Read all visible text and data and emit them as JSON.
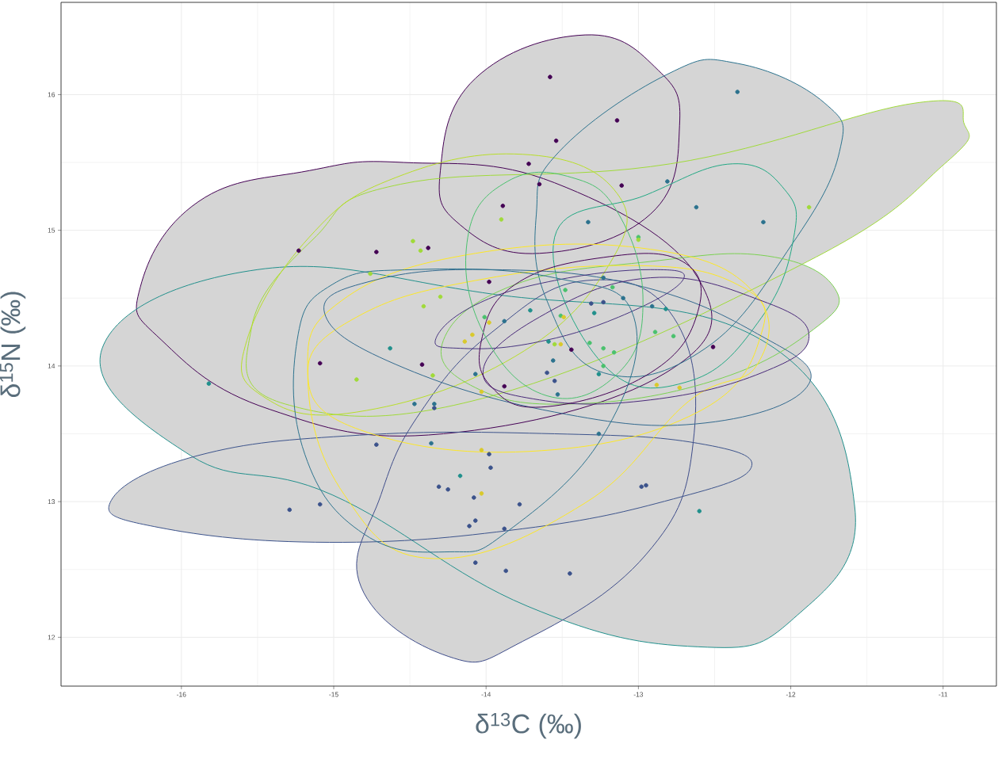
{
  "chart_data": {
    "type": "scatter",
    "xlabel": "δ$^{13}$C (‰)",
    "ylabel": "δ$^{15}$N (‰)",
    "xlim": [
      -16.79,
      -10.65
    ],
    "ylim": [
      11.64,
      16.68
    ],
    "xticks": [
      -16,
      -15,
      -14,
      -13,
      -12,
      -11
    ],
    "yticks": [
      12,
      13,
      14,
      15,
      16
    ],
    "grid": true,
    "series": [
      {
        "type": "area",
        "marker": "none",
        "color": "#440154",
        "x": [
          -14.3,
          -14.07,
          -13.35,
          -12.87,
          -12.73,
          -12.92,
          -13.65,
          -14.17
        ],
        "values": [
          15.44,
          16.12,
          16.44,
          16.18,
          15.77,
          15.12,
          14.83,
          15.04
        ]
      },
      {
        "type": "area",
        "marker": "none",
        "color": "#440154",
        "x": [
          -16.27,
          -15.89,
          -15.16,
          -14.54,
          -13.55,
          -12.61,
          -12.82,
          -14.28,
          -15.42,
          -16.13
        ],
        "values": [
          14.58,
          15.21,
          15.44,
          15.5,
          15.35,
          14.65,
          13.95,
          13.5,
          13.68,
          14.19
        ]
      },
      {
        "type": "area",
        "marker": "none",
        "color": "#21908c",
        "x": [
          -16.52,
          -15.5,
          -13.96,
          -12.19,
          -11.58,
          -11.98,
          -12.61,
          -13.73,
          -15.01,
          -15.94
        ],
        "values": [
          14.13,
          14.71,
          14.53,
          14.19,
          12.96,
          12.14,
          11.93,
          12.23,
          13.05,
          13.34
        ]
      },
      {
        "type": "area",
        "marker": "none",
        "color": "#3b528b",
        "x": [
          -16.46,
          -15.89,
          -14.83,
          -13.55,
          -12.61,
          -12.26,
          -12.77,
          -13.76,
          -15.03,
          -16.15
        ],
        "values": [
          13.01,
          13.34,
          13.49,
          13.5,
          13.43,
          13.25,
          13.02,
          12.8,
          12.7,
          12.81
        ]
      },
      {
        "type": "area",
        "marker": "none",
        "color": "#3e4c8a",
        "x": [
          -14.82,
          -14.69,
          -14.43,
          -13.96,
          -13.34,
          -12.77,
          -12.64,
          -12.95,
          -13.76,
          -14.25
        ],
        "values": [
          12.37,
          13.05,
          13.66,
          14.25,
          14.63,
          14.36,
          13.44,
          12.61,
          11.97,
          11.86
        ]
      },
      {
        "type": "area",
        "marker": "none",
        "color": "#a0da39",
        "x": [
          -10.86,
          -11.17,
          -12.79,
          -14.56,
          -15.13,
          -15.54,
          -15.32,
          -13.96,
          -11.89,
          -10.99
        ],
        "values": [
          15.78,
          15.94,
          15.49,
          15.34,
          14.94,
          14.28,
          13.72,
          13.78,
          14.77,
          15.49
        ]
      },
      {
        "type": "area",
        "marker": "none",
        "color": "#b8de29",
        "x": [
          -15.57,
          -15.16,
          -14.59,
          -13.76,
          -13.16,
          -13.18,
          -13.81,
          -14.85,
          -15.47
        ],
        "values": [
          14.19,
          14.95,
          15.39,
          15.56,
          15.3,
          14.77,
          14.07,
          13.66,
          13.78
        ]
      },
      {
        "type": "area",
        "marker": "none",
        "color": "#2c728e",
        "x": [
          -13.67,
          -13.52,
          -12.81,
          -12.35,
          -11.78,
          -11.68,
          -11.99,
          -12.56,
          -13.23,
          -13.6
        ],
        "values": [
          15.12,
          15.58,
          16.15,
          16.23,
          15.94,
          15.58,
          14.9,
          14.13,
          13.95,
          14.48
        ]
      },
      {
        "type": "area",
        "marker": "none",
        "color": "#22a884",
        "x": [
          -13.55,
          -12.95,
          -12.38,
          -12.04,
          -11.98,
          -12.19,
          -12.66,
          -13.23
        ],
        "values": [
          14.95,
          15.26,
          15.49,
          15.3,
          14.95,
          14.36,
          13.89,
          14.01
        ]
      },
      {
        "type": "area",
        "marker": "none",
        "color": "#7ad151",
        "x": [
          -14.28,
          -13.81,
          -12.92,
          -12.15,
          -11.71,
          -11.85,
          -12.51,
          -13.44,
          -14.07
        ],
        "values": [
          14.19,
          14.6,
          14.77,
          14.81,
          14.57,
          14.27,
          13.89,
          13.72,
          13.84
        ]
      },
      {
        "type": "area",
        "marker": "none",
        "color": "#fde725",
        "x": [
          -15.17,
          -14.95,
          -14.07,
          -12.92,
          -12.24,
          -12.22,
          -12.67,
          -13.35,
          -14.34,
          -14.93
        ],
        "values": [
          13.92,
          14.48,
          14.83,
          14.86,
          14.54,
          14.01,
          13.74,
          12.99,
          12.58,
          13.05
        ]
      },
      {
        "type": "area",
        "marker": "none",
        "color": "#fde725",
        "x": [
          -15.17,
          -14.85,
          -14.07,
          -13.03,
          -12.35,
          -12.19,
          -12.61,
          -13.72,
          -14.83
        ],
        "values": [
          13.95,
          14.36,
          14.63,
          14.74,
          14.6,
          14.25,
          13.66,
          13.37,
          13.53
        ]
      },
      {
        "type": "area",
        "marker": "none",
        "color": "#31688e",
        "x": [
          -15.06,
          -14.74,
          -13.96,
          -13.03,
          -12.24,
          -11.88,
          -12.56,
          -13.55,
          -14.59
        ],
        "values": [
          14.39,
          14.63,
          14.71,
          14.6,
          14.25,
          13.87,
          13.58,
          13.66,
          14.01
        ]
      },
      {
        "type": "area",
        "marker": "none",
        "color": "#482878",
        "x": [
          -14.02,
          -13.65,
          -12.92,
          -12.19,
          -11.88,
          -12.19,
          -12.92,
          -13.65
        ],
        "values": [
          13.95,
          14.36,
          14.65,
          14.48,
          14.22,
          13.95,
          13.75,
          13.75
        ]
      },
      {
        "type": "area",
        "marker": "none",
        "color": "#46337e",
        "x": [
          -14.33,
          -14.07,
          -13.55,
          -12.92,
          -12.71,
          -13.13,
          -13.69,
          -14.17
        ],
        "values": [
          14.2,
          14.45,
          14.63,
          14.71,
          14.63,
          14.36,
          14.17,
          14.13
        ]
      },
      {
        "type": "area",
        "marker": "none",
        "color": "#440154",
        "x": [
          -14.03,
          -13.81,
          -13.23,
          -12.71,
          -12.61,
          -12.92,
          -13.6,
          -13.96
        ],
        "values": [
          14.19,
          14.6,
          14.8,
          14.77,
          14.4,
          13.95,
          13.7,
          13.84
        ]
      },
      {
        "type": "area",
        "marker": "none",
        "color": "#4ac16d",
        "x": [
          -14.12,
          -13.86,
          -13.44,
          -13.13,
          -12.97,
          -13.13,
          -13.6,
          -14.02
        ],
        "values": [
          14.95,
          15.36,
          15.39,
          15.12,
          14.48,
          13.95,
          13.78,
          14.25
        ]
      },
      {
        "type": "area",
        "marker": "none",
        "color": "#2c728e",
        "x": [
          -15.24,
          -15.01,
          -14.48,
          -13.55,
          -13.03,
          -13.23,
          -13.86,
          -14.24,
          -14.8,
          -15.19
        ],
        "values": [
          14.19,
          14.6,
          14.71,
          14.65,
          14.36,
          13.49,
          12.78,
          12.63,
          12.76,
          13.35
        ]
      },
      {
        "marker": "circle",
        "color": "#440154",
        "x": [
          -13.58,
          -13.54,
          -13.14,
          -13.72,
          -13.65,
          -13.89,
          -13.11,
          -14.38,
          -15.23,
          -14.72,
          -15.09,
          -14.42,
          -13.98,
          -13.44,
          -12.51,
          -13.88
        ],
        "values": [
          16.13,
          15.66,
          15.81,
          15.49,
          15.34,
          15.18,
          15.33,
          14.87,
          14.85,
          14.84,
          14.02,
          14.01,
          14.62,
          14.12,
          14.14,
          13.85
        ]
      },
      {
        "marker": "circle",
        "color": "#3b528b",
        "x": [
          -15.29,
          -15.09,
          -14.08,
          -14.07,
          -14.11,
          -13.88,
          -14.07,
          -13.87,
          -13.45,
          -12.98,
          -12.95,
          -14.31,
          -14.25,
          -13.78,
          -13.97,
          -14.72,
          -13.98,
          -14.34,
          -13.31,
          -13.23,
          -13.6,
          -13.55
        ],
        "values": [
          12.94,
          12.98,
          13.03,
          12.86,
          12.82,
          12.8,
          12.55,
          12.49,
          12.47,
          13.11,
          13.12,
          13.11,
          13.09,
          12.98,
          13.25,
          13.42,
          13.35,
          13.69,
          14.46,
          14.47,
          13.95,
          13.89
        ]
      },
      {
        "marker": "circle",
        "color": "#2c728e",
        "x": [
          -12.35,
          -12.81,
          -12.62,
          -12.18,
          -13.33,
          -14.47,
          -14.34,
          -14.36,
          -13.26,
          -13.56,
          -13.88,
          -13.23,
          -13.1,
          -13.53,
          -12.91,
          -14.07
        ],
        "values": [
          16.02,
          15.36,
          15.17,
          15.06,
          15.06,
          13.72,
          13.72,
          13.43,
          13.5,
          14.04,
          14.33,
          14.65,
          14.5,
          13.79,
          14.44,
          13.94
        ]
      },
      {
        "marker": "circle",
        "color": "#21908c",
        "x": [
          -15.82,
          -14.63,
          -14.17,
          -12.6,
          -13.29,
          -12.82,
          -13.59,
          -13.26,
          -13.71
        ],
        "values": [
          13.87,
          14.13,
          13.19,
          12.93,
          14.39,
          14.42,
          14.18,
          13.94,
          14.41
        ]
      },
      {
        "marker": "circle",
        "color": "#4ac16d",
        "x": [
          -13.32,
          -13.23,
          -13.17,
          -12.89,
          -12.77,
          -13.51,
          -13.48,
          -13.16,
          -13.23,
          -13.0,
          -14.01
        ],
        "values": [
          14.17,
          14.13,
          14.58,
          14.25,
          14.22,
          14.37,
          14.56,
          14.1,
          14.0,
          14.95,
          14.36
        ]
      },
      {
        "marker": "circle",
        "color": "#a0da39",
        "x": [
          -11.88,
          -13.0,
          -14.48,
          -14.43,
          -14.41,
          -14.3,
          -14.85,
          -14.35,
          -13.55,
          -13.9,
          -14.76
        ],
        "values": [
          15.17,
          14.93,
          14.92,
          14.85,
          14.44,
          14.51,
          13.9,
          13.93,
          14.16,
          15.08,
          14.68
        ]
      },
      {
        "marker": "circle",
        "color": "#d9c92b",
        "x": [
          -14.03,
          -14.03,
          -14.09,
          -13.98,
          -13.51,
          -13.49,
          -12.73,
          -12.88,
          -14.14,
          -14.03
        ],
        "values": [
          13.38,
          13.06,
          14.23,
          14.32,
          14.16,
          14.36,
          13.84,
          13.86,
          14.18,
          13.81
        ]
      }
    ]
  }
}
